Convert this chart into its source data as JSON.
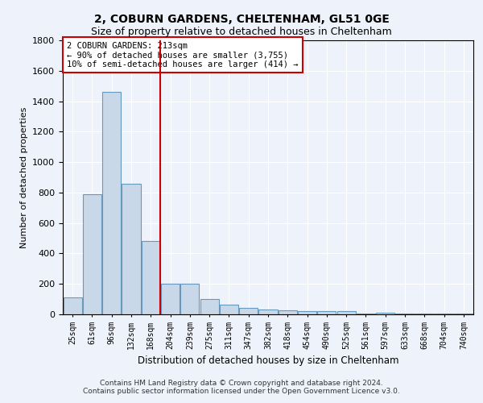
{
  "title1": "2, COBURN GARDENS, CHELTENHAM, GL51 0GE",
  "title2": "Size of property relative to detached houses in Cheltenham",
  "xlabel": "Distribution of detached houses by size in Cheltenham",
  "ylabel": "Number of detached properties",
  "categories": [
    "25sqm",
    "61sqm",
    "96sqm",
    "132sqm",
    "168sqm",
    "204sqm",
    "239sqm",
    "275sqm",
    "311sqm",
    "347sqm",
    "382sqm",
    "418sqm",
    "454sqm",
    "490sqm",
    "525sqm",
    "561sqm",
    "597sqm",
    "633sqm",
    "668sqm",
    "704sqm",
    "740sqm"
  ],
  "bar_values": [
    110,
    790,
    1460,
    860,
    480,
    200,
    200,
    100,
    65,
    45,
    30,
    25,
    20,
    20,
    20,
    5,
    10,
    5,
    5,
    5,
    5
  ],
  "bar_color": "#c8d8e8",
  "bar_edge_color": "#6699bb",
  "vline_x_index": 5,
  "vline_color": "#cc0000",
  "ylim": [
    0,
    1800
  ],
  "yticks": [
    0,
    200,
    400,
    600,
    800,
    1000,
    1200,
    1400,
    1600,
    1800
  ],
  "annotation_text": "2 COBURN GARDENS: 213sqm\n← 90% of detached houses are smaller (3,755)\n10% of semi-detached houses are larger (414) →",
  "annotation_box_color": "#ffffff",
  "annotation_box_edge": "#cc0000",
  "footer1": "Contains HM Land Registry data © Crown copyright and database right 2024.",
  "footer2": "Contains public sector information licensed under the Open Government Licence v3.0.",
  "background_color": "#eef2fa",
  "grid_color": "#ffffff",
  "title1_fontsize": 10,
  "title2_fontsize": 9
}
